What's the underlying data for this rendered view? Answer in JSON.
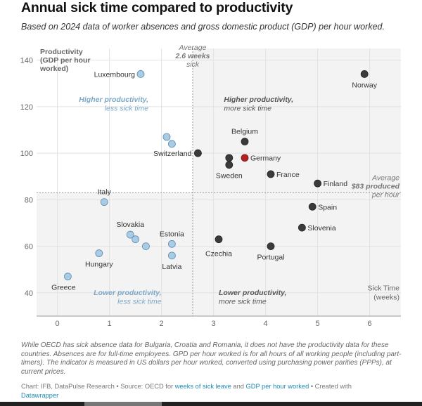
{
  "title": "Annual sick time compared to productivity",
  "subtitle": "Based on 2024 data of worker absences and gross domestic product (GDP) per hour worked.",
  "notes": "While OECD has sick absence data for Bulgaria, Croatia and Romania, it does not have the productivity data for these countries. Absences are for full-time employees. GPD per hour worked is for all hours of all working people (including part-timers). The indicator is measured in US dollars per hour worked, converted using purchasing power parities (PPPs), at current prices.",
  "source": {
    "prefix": "Chart: IFB, DataPulse Research • Source: OECD for ",
    "link1": "weeks of sick leave",
    "and": " and ",
    "link2": "GDP per hour worked",
    "suffix": " • Created with",
    "link3": "Datawrapper"
  },
  "colors": {
    "light_point": "#a9cbe4",
    "light_stroke": "#5b8db3",
    "dark_point": "#3b3b3b",
    "highlight_point": "#b22222",
    "quadrant_label_light": "#7ba8c8",
    "quadrant_label_dark": "#555555",
    "shade": "#f3f3f3"
  },
  "chart_data": {
    "type": "scatter",
    "xlabel": "Sick Time (weeks)",
    "ylabel": "Productivity (GDP per hour worked)",
    "xlim": [
      -0.4,
      6.6
    ],
    "ylim": [
      30,
      145
    ],
    "x_ticks": [
      0,
      1,
      2,
      3,
      4,
      5,
      6
    ],
    "y_ticks": [
      40,
      60,
      80,
      100,
      120,
      140
    ],
    "reference_lines": {
      "x_average": 2.6,
      "x_average_label": [
        "Average",
        "2.6 weeks",
        "sick"
      ],
      "y_average": 83,
      "y_average_label": [
        "Average",
        "$83 produced",
        "per hour"
      ]
    },
    "quadrant_labels": {
      "top_left": [
        "Higher productivity,",
        "less sick time"
      ],
      "top_right": [
        "Higher productivity,",
        "more sick time"
      ],
      "bottom_left": [
        "Lower productivity,",
        "less sick time"
      ],
      "bottom_right": [
        "Lower productivity,",
        "more sick time"
      ]
    },
    "points": [
      {
        "label": "Luxembourg",
        "x": 1.6,
        "y": 134,
        "group": "below_avg_sick"
      },
      {
        "label": "Norway",
        "x": 5.9,
        "y": 134,
        "group": "above_avg_sick"
      },
      {
        "label": "",
        "x": 2.1,
        "y": 107,
        "group": "below_avg_sick"
      },
      {
        "label": "",
        "x": 2.2,
        "y": 104,
        "group": "below_avg_sick"
      },
      {
        "label": "Switzerland",
        "x": 2.7,
        "y": 100,
        "group": "above_avg_sick"
      },
      {
        "label": "Belgium",
        "x": 3.6,
        "y": 105,
        "group": "above_avg_sick"
      },
      {
        "label": "Germany",
        "x": 3.6,
        "y": 98,
        "group": "highlight"
      },
      {
        "label": "",
        "x": 3.3,
        "y": 98,
        "group": "above_avg_sick"
      },
      {
        "label": "Sweden",
        "x": 3.3,
        "y": 95,
        "group": "above_avg_sick"
      },
      {
        "label": "France",
        "x": 4.1,
        "y": 91,
        "group": "above_avg_sick"
      },
      {
        "label": "Finland",
        "x": 5.0,
        "y": 87,
        "group": "above_avg_sick"
      },
      {
        "label": "Spain",
        "x": 4.9,
        "y": 77,
        "group": "above_avg_sick"
      },
      {
        "label": "Slovenia",
        "x": 4.7,
        "y": 68,
        "group": "above_avg_sick"
      },
      {
        "label": "Czechia",
        "x": 3.1,
        "y": 63,
        "group": "above_avg_sick"
      },
      {
        "label": "Portugal",
        "x": 4.1,
        "y": 60,
        "group": "above_avg_sick"
      },
      {
        "label": "Italy",
        "x": 0.9,
        "y": 79,
        "group": "below_avg_sick"
      },
      {
        "label": "Slovakia",
        "x": 1.4,
        "y": 65,
        "group": "below_avg_sick"
      },
      {
        "label": "",
        "x": 1.5,
        "y": 63,
        "group": "below_avg_sick"
      },
      {
        "label": "",
        "x": 1.7,
        "y": 60,
        "group": "below_avg_sick"
      },
      {
        "label": "Estonia",
        "x": 2.2,
        "y": 61,
        "group": "below_avg_sick"
      },
      {
        "label": "Latvia",
        "x": 2.2,
        "y": 56,
        "group": "below_avg_sick"
      },
      {
        "label": "Hungary",
        "x": 0.8,
        "y": 57,
        "group": "below_avg_sick"
      },
      {
        "label": "Greece",
        "x": 0.2,
        "y": 47,
        "group": "below_avg_sick"
      }
    ]
  }
}
